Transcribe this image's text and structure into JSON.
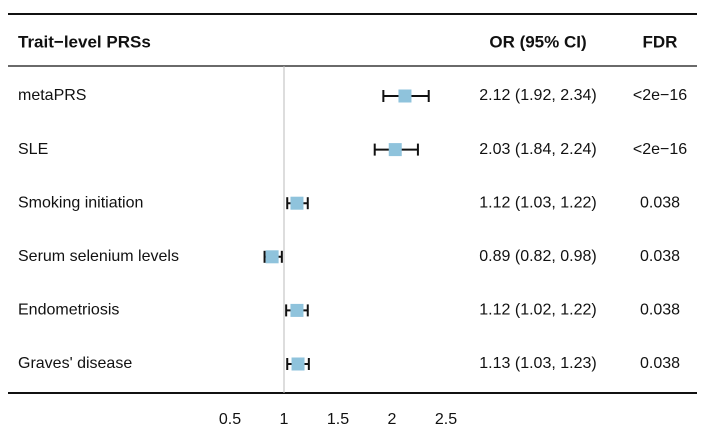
{
  "chart_data": {
    "type": "forest",
    "headers": {
      "label": "Trait−level PRSs",
      "estimate": "OR (95% CI)",
      "fdr": "FDR"
    },
    "categories": [
      "metaPRS",
      "SLE",
      "Smoking initiation",
      "Serum selenium levels",
      "Endometriosis",
      "Graves' disease"
    ],
    "values": [
      2.12,
      2.03,
      1.12,
      0.89,
      1.12,
      1.13
    ],
    "lower": [
      1.92,
      1.84,
      1.03,
      0.82,
      1.02,
      1.03
    ],
    "upper": [
      2.34,
      2.24,
      1.22,
      0.98,
      1.22,
      1.23
    ],
    "value_labels": [
      "2.12 (1.92, 2.34)",
      "2.03 (1.84, 2.24)",
      "1.12 (1.03, 1.22)",
      "0.89 (0.82, 0.98)",
      "1.12 (1.02, 1.22)",
      "1.13 (1.03, 1.23)"
    ],
    "fdr": [
      "<2e−16",
      "<2e−16",
      "0.038",
      "0.038",
      "0.038",
      "0.038"
    ],
    "xlim": [
      0.5,
      2.5
    ],
    "xticks": [
      0.5,
      1,
      1.5,
      2,
      2.5
    ],
    "reference_line": 1,
    "color": "#8fc3dc"
  }
}
